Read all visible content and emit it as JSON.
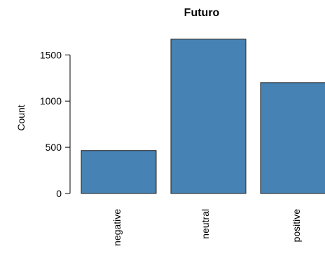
{
  "chart_data": {
    "type": "bar",
    "title": "Futuro",
    "xlabel": "",
    "ylabel": "Count",
    "categories": [
      "negative",
      "neutral",
      "positive"
    ],
    "values": [
      465,
      1670,
      1200
    ],
    "ylim": [
      0,
      1800
    ],
    "yticks": [
      0,
      500,
      1000,
      1500
    ],
    "grid": false,
    "legend": "none",
    "bar_color": "#4682B4"
  }
}
